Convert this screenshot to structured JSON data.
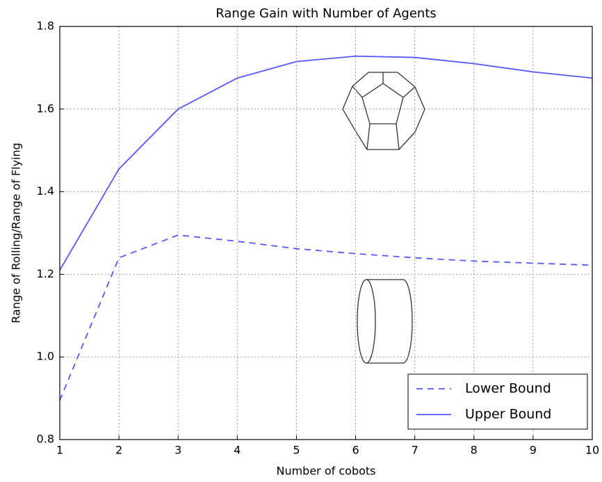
{
  "chart_data": {
    "type": "line",
    "title": "Range Gain with Number of Agents",
    "x_label": "Number of cobots",
    "y_label": "Range of Rolling/Range of Flying",
    "x": [
      1,
      2,
      3,
      4,
      5,
      6,
      7,
      8,
      9,
      10
    ],
    "series": [
      {
        "name": "Lower Bound",
        "color": "#5555ff",
        "dash": true,
        "values": [
          0.895,
          1.24,
          1.295,
          1.28,
          1.262,
          1.25,
          1.24,
          1.232,
          1.227,
          1.222
        ]
      },
      {
        "name": "Upper Bound",
        "color": "#5555ff",
        "dash": false,
        "values": [
          1.21,
          1.455,
          1.6,
          1.675,
          1.715,
          1.728,
          1.725,
          1.71,
          1.69,
          1.675
        ]
      }
    ],
    "xlim": [
      1,
      10
    ],
    "xticks": [
      1,
      2,
      3,
      4,
      5,
      6,
      7,
      8,
      9,
      10
    ],
    "ylim": [
      0.8,
      1.8
    ],
    "yticks": [
      0.8,
      {
        "value": 1,
        "label": "1.0"
      },
      1.2,
      1.4,
      1.6,
      1.8
    ],
    "grid": true,
    "legend": "lower right"
  }
}
